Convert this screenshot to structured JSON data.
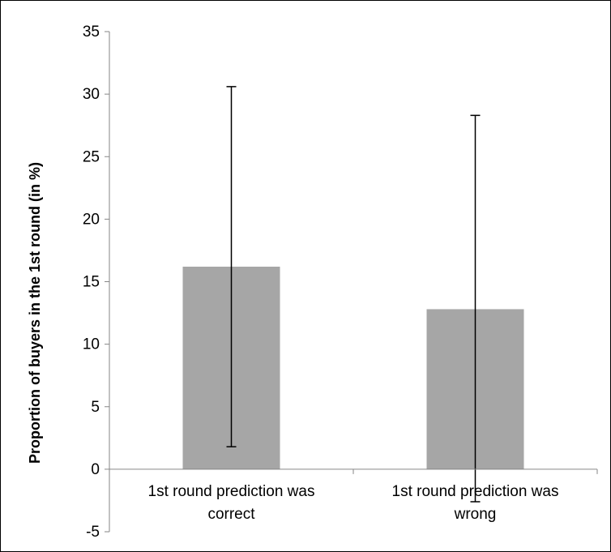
{
  "chart_data": {
    "type": "bar",
    "title": "",
    "xlabel": "",
    "ylabel": "Proportion of buyers in the 1st round (in %)",
    "ylim": [
      -5,
      35
    ],
    "yticks": [
      -5,
      0,
      5,
      10,
      15,
      20,
      25,
      30,
      35
    ],
    "grid": false,
    "legend": "none",
    "categories": [
      [
        "1st round prediction was",
        "correct"
      ],
      [
        "1st round prediction was",
        "wrong"
      ]
    ],
    "values": [
      16.2,
      12.8
    ],
    "error_bars": [
      {
        "low": 1.8,
        "high": 30.6
      },
      {
        "low": -2.6,
        "high": 28.3
      }
    ],
    "colors": {
      "bar": "#a6a6a6",
      "axis": "#868686",
      "error_bar": "#000000"
    }
  }
}
